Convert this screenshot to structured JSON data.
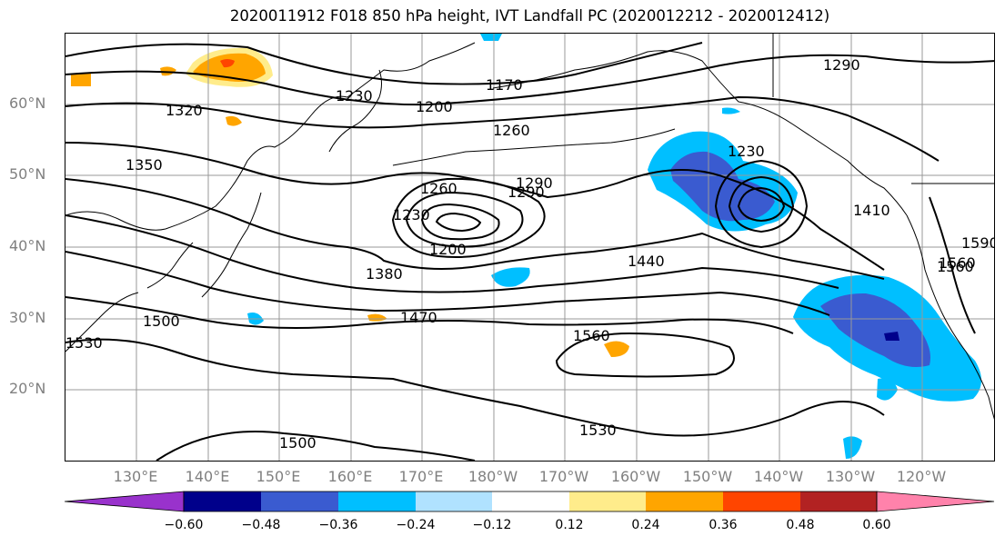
{
  "title": "2020011912 F018 850 hPa height, IVT Landfall PC (2020012212 - 2020012412)",
  "lat_labels": [
    "60°N",
    "50°N",
    "40°N",
    "30°N",
    "20°N"
  ],
  "lon_labels": [
    "130°E",
    "140°E",
    "150°E",
    "160°E",
    "170°E",
    "180°W",
    "170°W",
    "160°W",
    "150°W",
    "140°W",
    "130°W",
    "120°W"
  ],
  "contour_labels": [
    "1170",
    "1200",
    "1230",
    "1260",
    "1290",
    "1320",
    "1350",
    "1260",
    "1230",
    "1200",
    "1290",
    "1230",
    "1410",
    "1380",
    "1440",
    "1470",
    "1500",
    "1530",
    "1560",
    "1530",
    "1500",
    "1560",
    "1290",
    "1560",
    "1590"
  ],
  "colorbar": {
    "ticks": [
      "−0.60",
      "−0.48",
      "−0.36",
      "−0.24",
      "−0.12",
      "0.12",
      "0.24",
      "0.36",
      "0.48",
      "0.60"
    ],
    "colors": [
      "#9932cc",
      "#00008b",
      "#3a5bd0",
      "#00bfff",
      "#b0e2ff",
      "#ffffff",
      "#ffec8b",
      "#ffa500",
      "#ff4500",
      "#b22222",
      "#ff82ab"
    ]
  }
}
